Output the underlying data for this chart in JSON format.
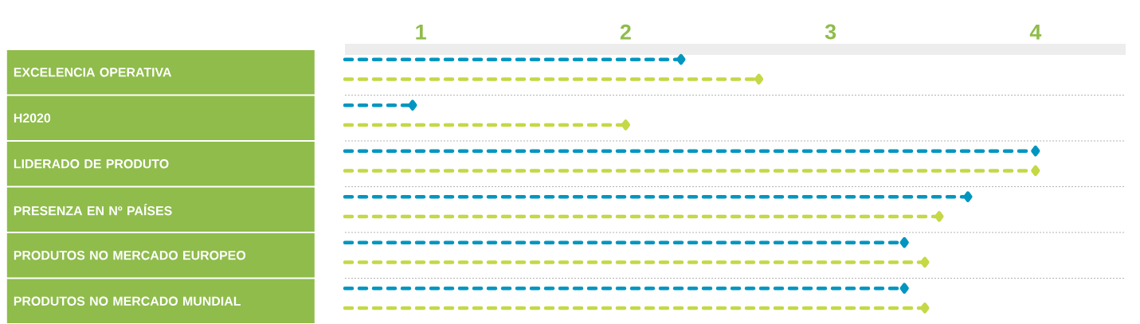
{
  "chart_data": {
    "type": "lollipop",
    "orientation": "horizontal",
    "categories": [
      "EXCELENCIA OPERATIVA",
      "H2020",
      "LIDERADO DE PRODUTO",
      "PRESENZA EN Nº PAÍSES",
      "PRODUTOS NO MERCADO EUROPEO",
      "PRODUTOS NO MERCADO MUNDIAL"
    ],
    "series": [
      {
        "color": "#0096c0",
        "values": [
          2.27,
          0.96,
          4.0,
          3.67,
          3.36,
          3.36
        ]
      },
      {
        "color": "#c5d845",
        "values": [
          2.65,
          2.0,
          4.0,
          3.53,
          3.46,
          3.46
        ]
      }
    ],
    "xlim": [
      0.63,
      4.44
    ],
    "xticks": [
      1,
      2,
      3,
      4
    ],
    "grid": "y",
    "marker": "diamond",
    "line_style": "dashed"
  }
}
